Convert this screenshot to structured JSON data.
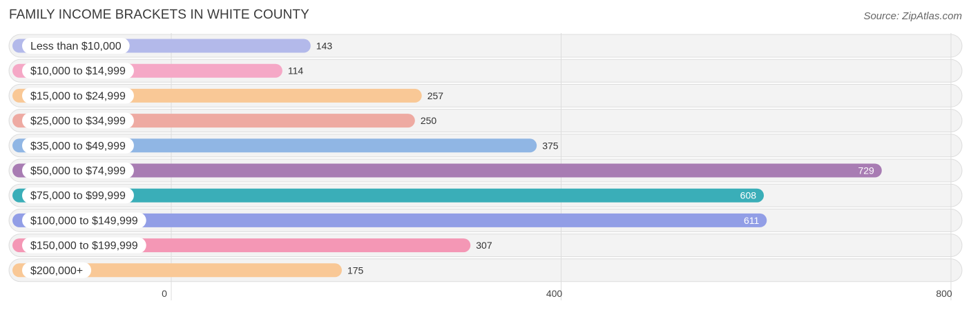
{
  "title": "FAMILY INCOME BRACKETS IN WHITE COUNTY",
  "source": "Source: ZipAtlas.com",
  "chart_data": {
    "type": "bar",
    "orientation": "horizontal",
    "title": "FAMILY INCOME BRACKETS IN WHITE COUNTY",
    "xlabel": "",
    "ylabel": "",
    "xlim": [
      0,
      800
    ],
    "ticks": [
      0,
      400,
      800
    ],
    "tick_labels": [
      "0",
      "400",
      "800"
    ],
    "grid": true,
    "categories": [
      "Less than $10,000",
      "$10,000 to $14,999",
      "$15,000 to $24,999",
      "$25,000 to $34,999",
      "$35,000 to $49,999",
      "$50,000 to $74,999",
      "$75,000 to $99,999",
      "$100,000 to $149,999",
      "$150,000 to $199,999",
      "$200,000+"
    ],
    "values": [
      143,
      114,
      257,
      250,
      375,
      729,
      608,
      611,
      307,
      175
    ],
    "value_labels": [
      "143",
      "114",
      "257",
      "250",
      "375",
      "729",
      "608",
      "611",
      "307",
      "175"
    ],
    "colors": [
      "#b3b9ea",
      "#f5a8c6",
      "#f9c896",
      "#eeaaa2",
      "#90b6e4",
      "#a87cb3",
      "#3aaeb8",
      "#929ee6",
      "#f497b5",
      "#f9c896"
    ]
  }
}
